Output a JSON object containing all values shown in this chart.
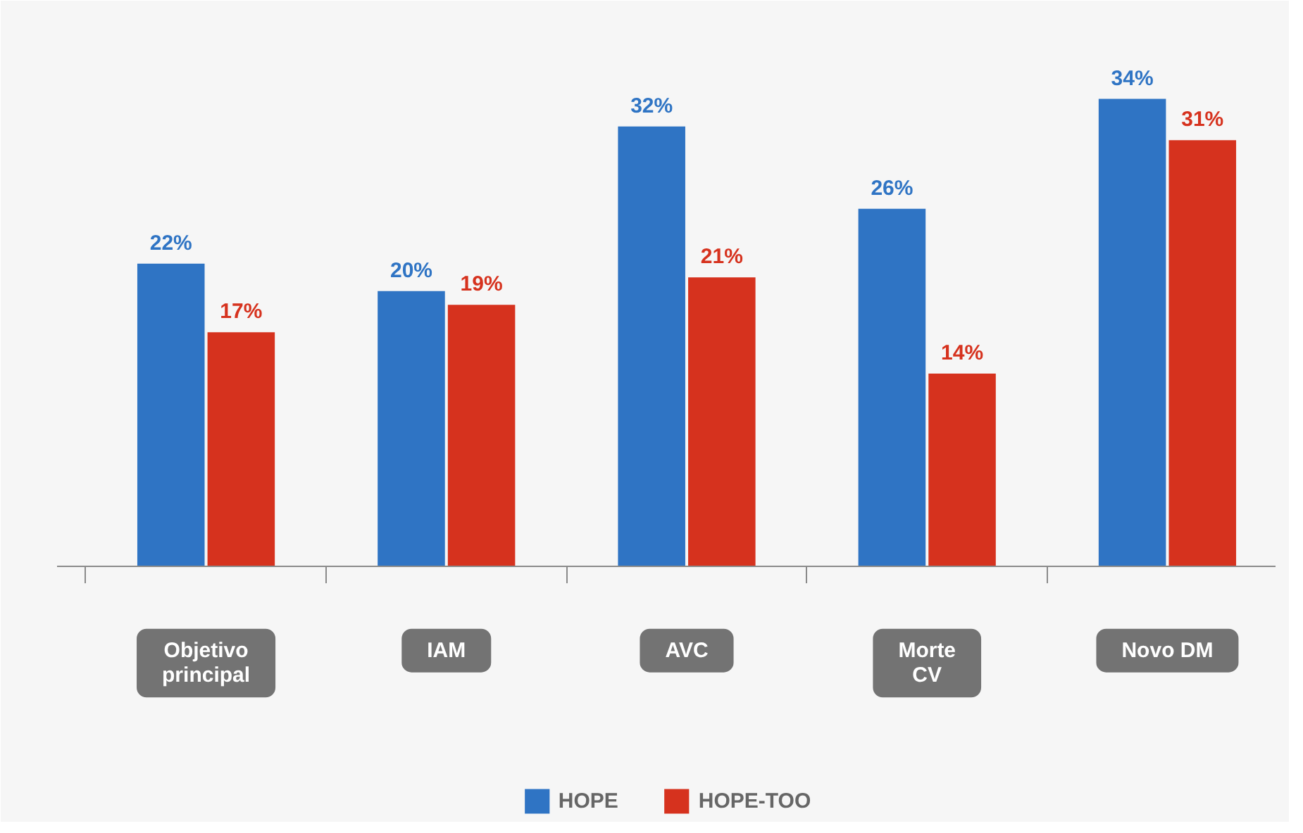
{
  "chart_data": {
    "type": "bar",
    "categories": [
      "Objetivo\nprincipal",
      "IAM",
      "AVC",
      "Morte\nCV",
      "Novo DM"
    ],
    "series": [
      {
        "name": "HOPE",
        "color": "#2f74c4",
        "values": [
          22,
          20,
          32,
          26,
          34
        ],
        "value_labels": [
          "22%",
          "20%",
          "32%",
          "26%",
          "34%"
        ]
      },
      {
        "name": "HOPE-TOO",
        "color": "#d6321e",
        "values": [
          17,
          19,
          21,
          14,
          31
        ],
        "value_labels": [
          "17%",
          "19%",
          "21%",
          "14%",
          "31%"
        ]
      }
    ],
    "legend": "bottom"
  }
}
